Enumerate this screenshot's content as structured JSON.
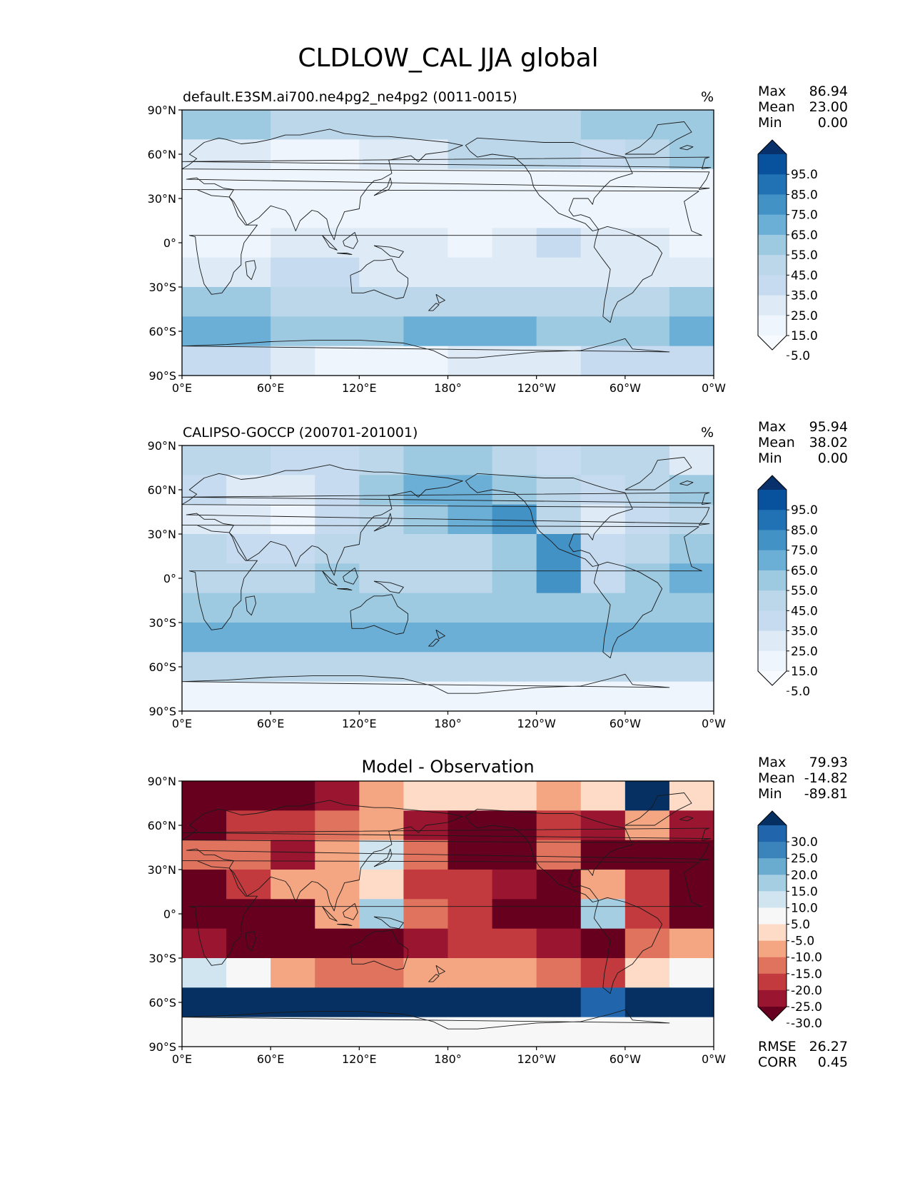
{
  "figure_title": "CLDLOW_CAL JJA global",
  "chart_data": [
    {
      "type": "heatmap",
      "title": "default.E3SM.ai700.ne4pg2_ne4pg2 (0011-0015)",
      "units": "%",
      "stats": [
        {
          "label": "Max",
          "value": "86.94"
        },
        {
          "label": "Mean",
          "value": "23.00"
        },
        {
          "label": "Min",
          "value": "0.00"
        }
      ],
      "colorbar": {
        "levels": [
          "95.0",
          "85.0",
          "75.0",
          "65.0",
          "55.0",
          "45.0",
          "35.0",
          "25.0",
          "15.0",
          "5.0"
        ],
        "colors": [
          "#08306b",
          "#08519c",
          "#2171b5",
          "#4292c6",
          "#6baed6",
          "#9ecae1",
          "#bcd7ea",
          "#c6dbef",
          "#deebf7",
          "#eef5fc",
          "#f7fbff"
        ]
      },
      "x_ticks": [
        "0°E",
        "60°E",
        "120°E",
        "180°",
        "120°W",
        "60°W",
        "0°W"
      ],
      "y_ticks": [
        "90°N",
        "60°N",
        "30°N",
        "0°",
        "30°S",
        "60°S",
        "90°S"
      ],
      "xlim": [
        0,
        360
      ],
      "ylim": [
        -90,
        90
      ],
      "field": [
        [
          50,
          50,
          45,
          42,
          40,
          42,
          40,
          40,
          45,
          48,
          50,
          50
        ],
        [
          25,
          20,
          15,
          15,
          18,
          20,
          45,
          45,
          40,
          35,
          45,
          55
        ],
        [
          15,
          10,
          8,
          10,
          15,
          10,
          12,
          10,
          8,
          8,
          8,
          10
        ],
        [
          8,
          8,
          8,
          10,
          12,
          14,
          12,
          12,
          12,
          12,
          10,
          10
        ],
        [
          8,
          12,
          18,
          22,
          20,
          18,
          15,
          18,
          35,
          25,
          18,
          12
        ],
        [
          18,
          25,
          28,
          28,
          25,
          25,
          22,
          25,
          25,
          22,
          25,
          22
        ],
        [
          55,
          55,
          45,
          40,
          40,
          38,
          38,
          38,
          40,
          40,
          45,
          55
        ],
        [
          60,
          65,
          55,
          55,
          55,
          60,
          65,
          62,
          55,
          50,
          55,
          60
        ],
        [
          35,
          35,
          20,
          10,
          10,
          15,
          25,
          25,
          25,
          35,
          30,
          30
        ]
      ]
    },
    {
      "type": "heatmap",
      "title": "CALIPSO-GOCCP (200701-201001)",
      "units": "%",
      "stats": [
        {
          "label": "Max",
          "value": "95.94"
        },
        {
          "label": "Mean",
          "value": "38.02"
        },
        {
          "label": "Min",
          "value": "0.00"
        }
      ],
      "colorbar": {
        "levels": [
          "95.0",
          "85.0",
          "75.0",
          "65.0",
          "55.0",
          "45.0",
          "35.0",
          "25.0",
          "15.0",
          "5.0"
        ],
        "colors": [
          "#08306b",
          "#08519c",
          "#2171b5",
          "#4292c6",
          "#6baed6",
          "#9ecae1",
          "#bcd7ea",
          "#c6dbef",
          "#deebf7",
          "#eef5fc",
          "#f7fbff"
        ]
      },
      "x_ticks": [
        "0°E",
        "60°E",
        "120°E",
        "180°",
        "120°W",
        "60°W",
        "0°W"
      ],
      "y_ticks": [
        "90°N",
        "60°N",
        "30°N",
        "0°",
        "30°S",
        "60°S",
        "90°S"
      ],
      "xlim": [
        0,
        360
      ],
      "ylim": [
        -90,
        90
      ],
      "field": [
        [
          45,
          40,
          35,
          35,
          45,
          50,
          50,
          45,
          35,
          40,
          45,
          25
        ],
        [
          30,
          25,
          20,
          30,
          55,
          60,
          60,
          55,
          40,
          30,
          45,
          50
        ],
        [
          25,
          20,
          10,
          35,
          45,
          55,
          65,
          75,
          40,
          25,
          35,
          40
        ],
        [
          45,
          35,
          30,
          40,
          45,
          40,
          45,
          55,
          75,
          30,
          40,
          55
        ],
        [
          40,
          40,
          45,
          50,
          45,
          45,
          45,
          50,
          70,
          35,
          55,
          60
        ],
        [
          55,
          55,
          55,
          55,
          55,
          50,
          50,
          55,
          55,
          55,
          55,
          55
        ],
        [
          60,
          60,
          60,
          60,
          60,
          60,
          60,
          60,
          60,
          60,
          60,
          60
        ],
        [
          40,
          45,
          45,
          40,
          40,
          45,
          45,
          40,
          40,
          45,
          45,
          40
        ],
        [
          8,
          8,
          8,
          8,
          8,
          8,
          8,
          8,
          8,
          8,
          8,
          8
        ]
      ]
    },
    {
      "type": "heatmap",
      "title": "Model - Observation",
      "units": "",
      "stats": [
        {
          "label": "Max",
          "value": "79.93"
        },
        {
          "label": "Mean",
          "value": "-14.82"
        },
        {
          "label": "Min",
          "value": "-89.81"
        }
      ],
      "extra_stats": [
        {
          "label": "RMSE",
          "value": "26.27"
        },
        {
          "label": "CORR",
          "value": "0.45"
        }
      ],
      "colorbar": {
        "levels": [
          "30.0",
          "25.0",
          "20.0",
          "15.0",
          "10.0",
          "5.0",
          "-5.0",
          "-10.0",
          "-15.0",
          "-20.0",
          "-25.0",
          "-30.0"
        ],
        "colors": [
          "#053061",
          "#2166ac",
          "#3a84bb",
          "#6aacd0",
          "#a6cee3",
          "#d1e5f0",
          "#f7f7f7",
          "#fddbc7",
          "#f4a582",
          "#e0735e",
          "#c23a3d",
          "#9a1530",
          "#67001f"
        ]
      },
      "x_ticks": [
        "0°E",
        "60°E",
        "120°E",
        "180°",
        "120°W",
        "60°W",
        "0°W"
      ],
      "y_ticks": [
        "90°N",
        "60°N",
        "30°N",
        "0°",
        "30°S",
        "60°S",
        "90°S"
      ],
      "xlim": [
        0,
        360
      ],
      "ylim": [
        -90,
        90
      ],
      "field": [
        [
          -35,
          -35,
          -32,
          -25,
          -10,
          -8,
          -5,
          -5,
          -10,
          -5,
          35,
          -5
        ],
        [
          -30,
          -20,
          -20,
          -15,
          -10,
          -25,
          -35,
          -30,
          -20,
          -25,
          -10,
          -25
        ],
        [
          -15,
          -15,
          -25,
          -10,
          10,
          -15,
          -35,
          -35,
          -15,
          -30,
          -35,
          -35
        ],
        [
          -35,
          -20,
          -10,
          -10,
          -5,
          -20,
          -20,
          -25,
          -35,
          -10,
          -20,
          -35
        ],
        [
          -35,
          -35,
          -30,
          -10,
          15,
          -15,
          -20,
          -30,
          -30,
          15,
          -20,
          -35
        ],
        [
          -25,
          -30,
          -30,
          -35,
          -35,
          -25,
          -20,
          -20,
          -25,
          -30,
          -15,
          -10
        ],
        [
          10,
          5,
          -10,
          -15,
          -15,
          -10,
          -10,
          -10,
          -15,
          -20,
          -5,
          5
        ],
        [
          35,
          35,
          35,
          35,
          35,
          35,
          35,
          35,
          35,
          30,
          35,
          35
        ],
        [
          0,
          0,
          0,
          0,
          0,
          0,
          0,
          0,
          0,
          0,
          0,
          0
        ]
      ]
    }
  ]
}
